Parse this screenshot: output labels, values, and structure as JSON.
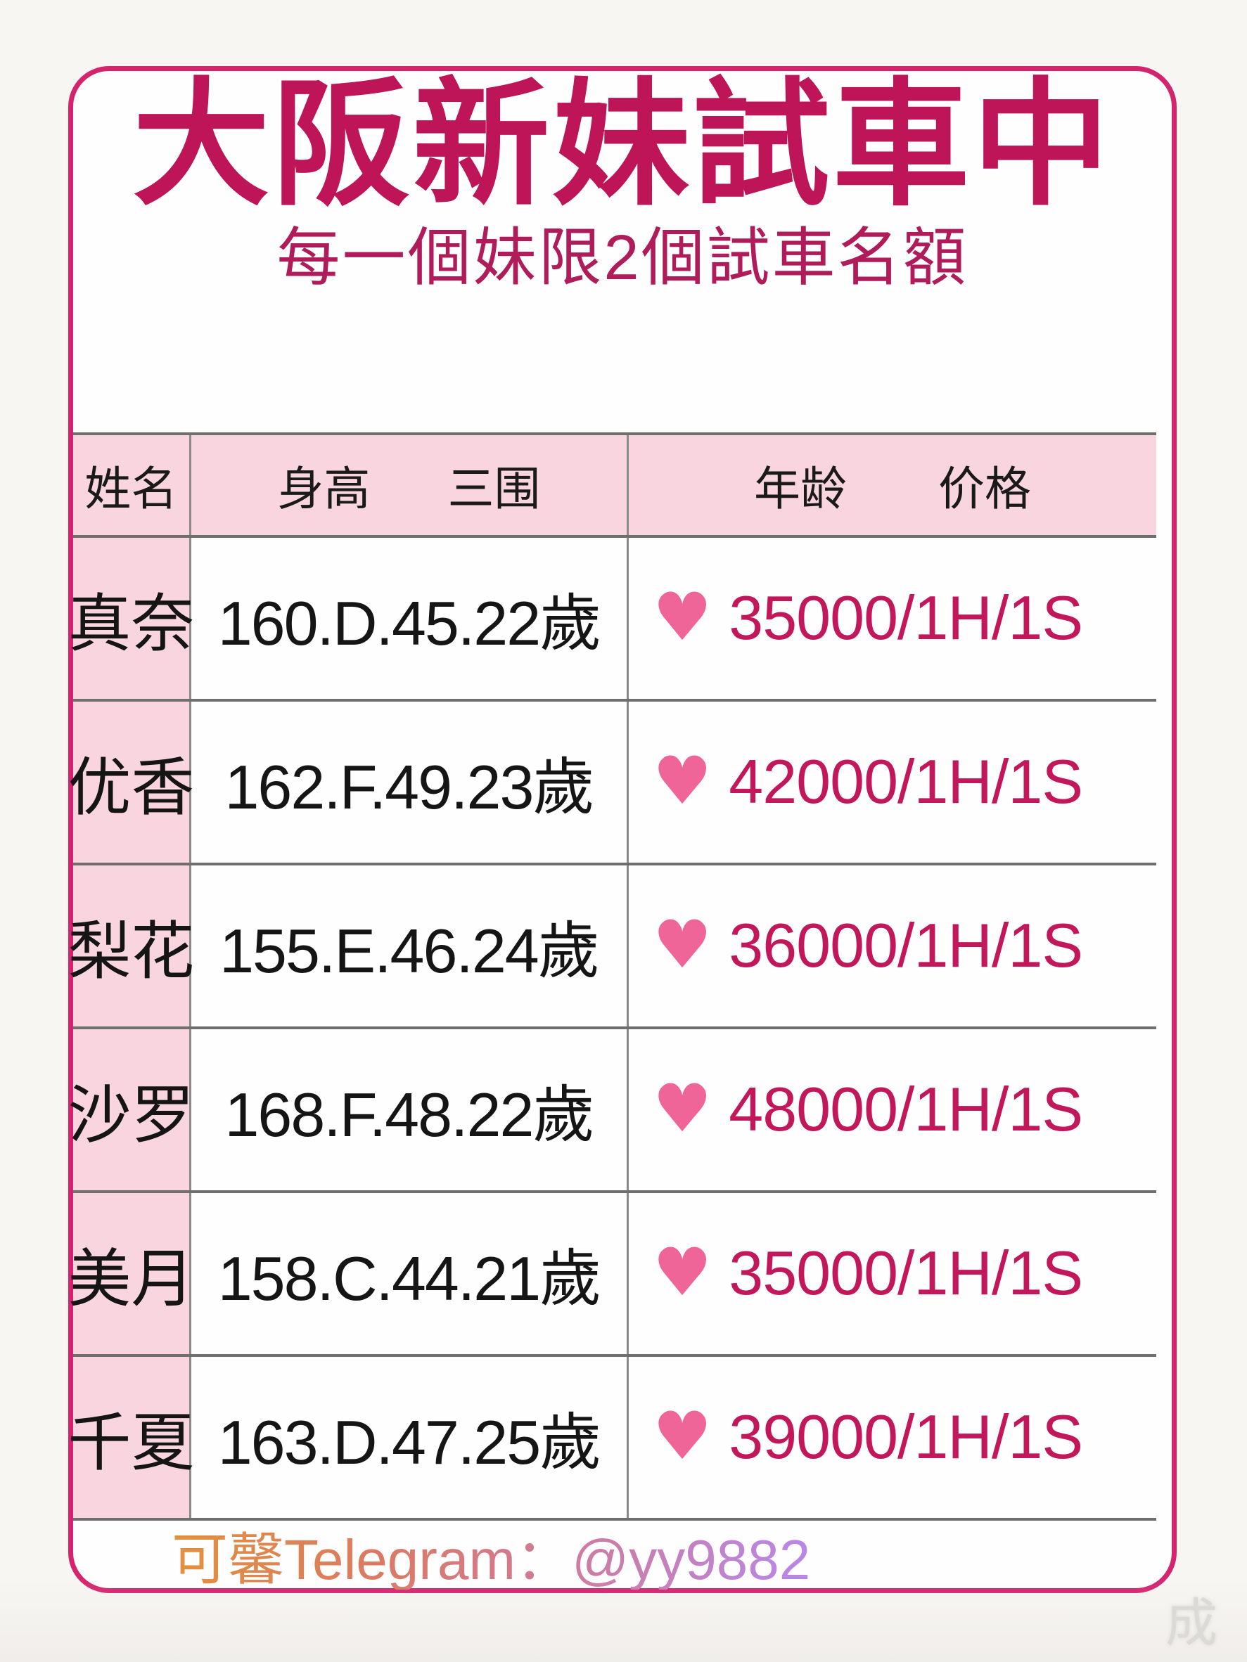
{
  "card": {
    "title": "大阪新妹試車中",
    "subtitle": "每一個妹限2個試車名額"
  },
  "table": {
    "columns": [
      {
        "labels": [
          "姓名"
        ]
      },
      {
        "labels": [
          "身高",
          "三围"
        ]
      },
      {
        "labels": [
          "年龄",
          "价格"
        ]
      }
    ],
    "rows": [
      {
        "name": "真奈",
        "stats": "160.D.45.22歲",
        "price": "35000/1H/1S"
      },
      {
        "name": "优香",
        "stats": "162.F.49.23歲",
        "price": "42000/1H/1S"
      },
      {
        "name": "梨花",
        "stats": "155.E.46.24歲",
        "price": "36000/1H/1S"
      },
      {
        "name": "沙罗",
        "stats": "168.F.48.22歲",
        "price": "48000/1H/1S"
      },
      {
        "name": "美月",
        "stats": "158.C.44.21歲",
        "price": "35000/1H/1S"
      },
      {
        "name": "千夏",
        "stats": "163.D.47.25歲",
        "price": "39000/1H/1S"
      }
    ]
  },
  "icons": {
    "heart": "♥"
  },
  "footer": {
    "contact": "可馨Telegram：@yy9882"
  },
  "watermark": "成",
  "colors": {
    "card_border": "#d5246e",
    "title_text": "#be1458",
    "subtitle_text": "#b01b59",
    "header_and_name_bg": "#f9d5e0",
    "table_line": "#6f6f6f",
    "price_text": "#c2185b",
    "heart": "#ef6598",
    "footer_gradient_start": "#e2913f",
    "footer_gradient_end": "#b887ea"
  }
}
